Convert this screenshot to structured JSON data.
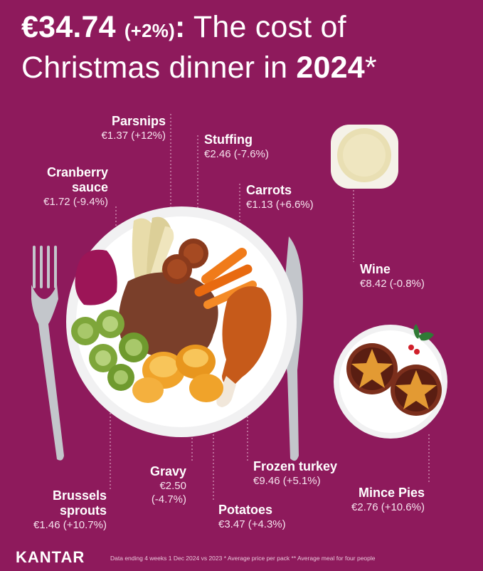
{
  "title": {
    "amount": "€34.74",
    "change": "(+2%)",
    "colon": ":",
    "text_a": " The cost of",
    "text_b": "Christmas dinner in ",
    "year": "2024",
    "asterisk": "*"
  },
  "items": {
    "parsnips": {
      "name": "Parsnips",
      "price": "€1.37 (+12%)"
    },
    "stuffing": {
      "name": "Stuffing",
      "price": "€2.46 (-7.6%)"
    },
    "cranberry": {
      "name_1": "Cranberry",
      "name_2": "sauce",
      "price": "€1.72 (-9.4%)"
    },
    "carrots": {
      "name": "Carrots",
      "price": "€1.13 (+6.6%)"
    },
    "wine": {
      "name": "Wine",
      "price": "€8.42 (-0.8%)"
    },
    "gravy": {
      "name": "Gravy",
      "price_1": "€2.50",
      "price_2": "(-4.7%)"
    },
    "frozen_turkey": {
      "name": "Frozen turkey",
      "price": "€9.46 (+5.1%)"
    },
    "mince_pies": {
      "name": "Mince Pies",
      "price": "€2.76 (+10.6%)"
    },
    "brussels": {
      "name_1": "Brussels",
      "name_2": "sprouts",
      "price": "€1.46 (+10.7%)"
    },
    "potatoes": {
      "name": "Potatoes",
      "price": "€3.47 (+4.3%)"
    }
  },
  "footer": {
    "logo": "KANTAR",
    "note": "Data ending 4 weeks 1 Dec 2024 vs 2023   * Average price per pack   ** Average meal for four people"
  },
  "colors": {
    "background": "#8e1a5c",
    "plate": "#ffffff",
    "cutlery": "#b9bcc2"
  },
  "icons": [
    "fork-icon",
    "knife-icon",
    "plate-icon",
    "wine-glass-icon",
    "mince-pie-icon",
    "holly-icon"
  ]
}
